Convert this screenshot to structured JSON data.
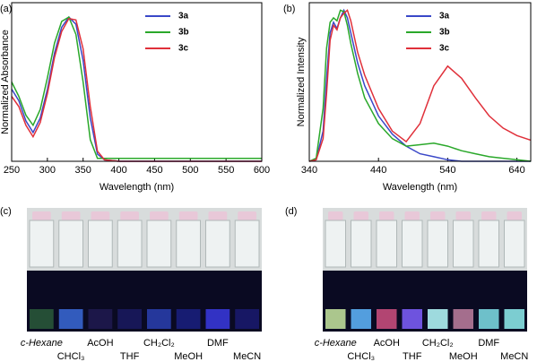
{
  "chart_data": [
    {
      "type": "line",
      "label": "(a)",
      "xlabel": "Wavelength (nm)",
      "ylabel": "Normalized Absorbance",
      "x": [
        250,
        260,
        270,
        280,
        290,
        300,
        310,
        320,
        330,
        340,
        350,
        360,
        370,
        380,
        400,
        450,
        500,
        550,
        600
      ],
      "series": [
        {
          "name": "3a",
          "color": "#3a48c8",
          "values": [
            0.5,
            0.42,
            0.28,
            0.2,
            0.3,
            0.5,
            0.75,
            0.93,
            1.0,
            0.95,
            0.7,
            0.3,
            0.05,
            0.01,
            0,
            0,
            0,
            0,
            0
          ]
        },
        {
          "name": "3b",
          "color": "#2aa82a",
          "values": [
            0.55,
            0.45,
            0.32,
            0.25,
            0.36,
            0.58,
            0.82,
            0.97,
            1.0,
            0.88,
            0.55,
            0.15,
            0.02,
            0.02,
            0.02,
            0.02,
            0.02,
            0.02,
            0.02
          ]
        },
        {
          "name": "3c",
          "color": "#e0303a",
          "values": [
            0.45,
            0.38,
            0.25,
            0.17,
            0.27,
            0.47,
            0.72,
            0.9,
            0.99,
            0.98,
            0.78,
            0.38,
            0.07,
            0.01,
            0,
            0,
            0,
            0,
            0
          ]
        }
      ],
      "xlim": [
        250,
        600
      ],
      "ylim": [
        0,
        1.1
      ],
      "xticks": [
        250,
        300,
        350,
        400,
        450,
        500,
        550,
        600
      ]
    },
    {
      "type": "line",
      "label": "(b)",
      "xlabel": "Wavelength (nm)",
      "ylabel": "Normalized Intensity",
      "x": [
        340,
        350,
        360,
        365,
        370,
        375,
        380,
        385,
        390,
        395,
        400,
        410,
        420,
        440,
        460,
        480,
        500,
        520,
        540,
        560,
        580,
        600,
        620,
        640,
        660
      ],
      "series": [
        {
          "name": "3a",
          "color": "#3a48c8",
          "values": [
            0,
            0.01,
            0.2,
            0.55,
            0.85,
            0.92,
            0.88,
            0.95,
            1.0,
            0.95,
            0.85,
            0.65,
            0.5,
            0.3,
            0.18,
            0.1,
            0.05,
            0.03,
            0.01,
            0,
            0,
            0,
            0,
            0,
            0
          ]
        },
        {
          "name": "3b",
          "color": "#2aa82a",
          "values": [
            0,
            0.02,
            0.35,
            0.75,
            0.92,
            0.95,
            0.93,
            1.0,
            0.99,
            0.9,
            0.78,
            0.58,
            0.42,
            0.25,
            0.15,
            0.1,
            0.11,
            0.12,
            0.1,
            0.07,
            0.05,
            0.03,
            0.02,
            0.01,
            0
          ]
        },
        {
          "name": "3c",
          "color": "#e0303a",
          "values": [
            0,
            0.01,
            0.15,
            0.45,
            0.8,
            0.9,
            0.87,
            0.95,
            0.98,
            1.0,
            0.93,
            0.72,
            0.57,
            0.35,
            0.2,
            0.13,
            0.25,
            0.5,
            0.63,
            0.55,
            0.42,
            0.3,
            0.22,
            0.17,
            0.14
          ]
        }
      ],
      "xlim": [
        340,
        660
      ],
      "ylim": [
        0,
        1.05
      ],
      "xticks": [
        340,
        440,
        540,
        640
      ]
    }
  ],
  "photos": [
    {
      "label": "(c)",
      "solvents": [
        "c-Hexane",
        "CHCl₃",
        "AcOH",
        "THF",
        "CH₂Cl₂",
        "MeOH",
        "DMF",
        "MeCN"
      ]
    },
    {
      "label": "(d)",
      "solvents": [
        "c-Hexane",
        "CHCl₃",
        "AcOH",
        "THF",
        "CH₂Cl₂",
        "MeOH",
        "DMF",
        "MeCN"
      ]
    }
  ]
}
